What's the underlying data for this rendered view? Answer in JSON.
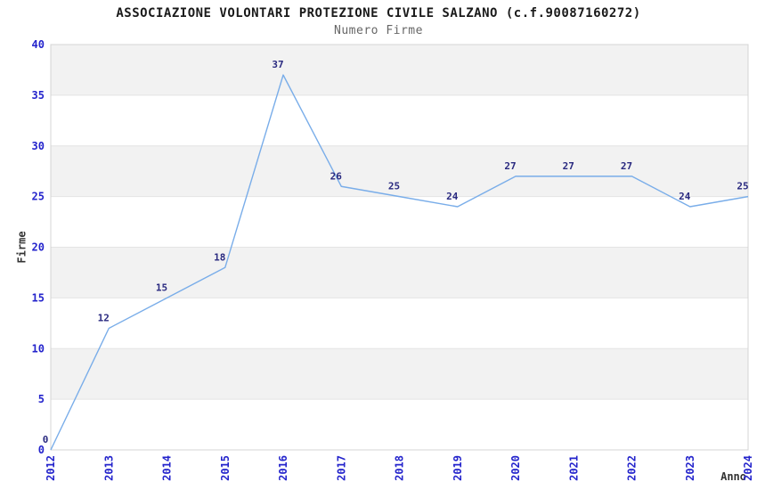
{
  "chart_data": {
    "type": "line",
    "title": "ASSOCIAZIONE VOLONTARI PROTEZIONE CIVILE SALZANO (c.f.90087160272)",
    "subtitle": "Numero Firme",
    "xlabel": "Anno",
    "ylabel": "Firme",
    "categories": [
      "2012",
      "2013",
      "2014",
      "2015",
      "2016",
      "2017",
      "2018",
      "2019",
      "2020",
      "2021",
      "2022",
      "2023",
      "2024"
    ],
    "values": [
      0,
      12,
      15,
      18,
      37,
      26,
      25,
      24,
      27,
      27,
      27,
      24,
      25
    ],
    "ylim": [
      0,
      40
    ],
    "ytick_step": 5,
    "grid": "horizontal-lines-with-alternating-bands",
    "legend": "none",
    "colors": {
      "line": "#79ade9",
      "point_label": "#2a2a80",
      "tick_label": "#2424cc",
      "axis_title": "#333333",
      "band_fill": "#f2f2f2",
      "grid_line": "#e4e4e4",
      "plot_border": "#d4d4d4",
      "title": "#1a1a1a",
      "subtitle": "#666666",
      "background": "#ffffff"
    }
  }
}
